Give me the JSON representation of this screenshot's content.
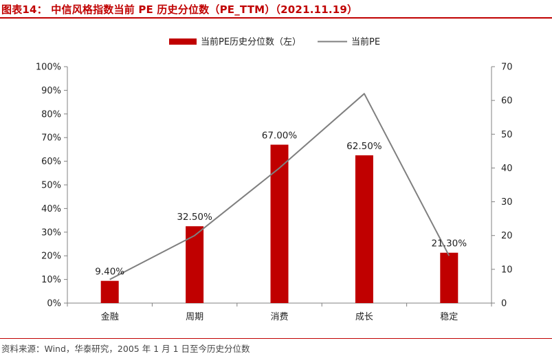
{
  "title": "图表14： 中信风格指数当前 PE 历史分位数（PE_TTM）（2021.11.19）",
  "source": "资料来源：Wind，华泰研究，2005 年 1 月 1 日至今历史分位数",
  "colors": {
    "bar": "#c00000",
    "line": "#7f7f7f",
    "title": "#c00000",
    "axis": "#808080"
  },
  "chart_data": {
    "type": "bar",
    "categories": [
      "金融",
      "周期",
      "消费",
      "成长",
      "稳定"
    ],
    "series": [
      {
        "name": "当前PE历史分位数（左）",
        "type": "bar",
        "axis": "left",
        "values": [
          0.094,
          0.325,
          0.67,
          0.625,
          0.213
        ],
        "data_labels": [
          "9.40%",
          "32.50%",
          "67.00%",
          "62.50%",
          "21.30%"
        ]
      },
      {
        "name": "当前PE",
        "type": "line",
        "axis": "right",
        "values": [
          7,
          20,
          40,
          62,
          14
        ]
      }
    ],
    "y_left": {
      "min": 0,
      "max": 1,
      "ticks": [
        "0%",
        "10%",
        "20%",
        "30%",
        "40%",
        "50%",
        "60%",
        "70%",
        "80%",
        "90%",
        "100%"
      ]
    },
    "y_right": {
      "min": 0,
      "max": 70,
      "ticks": [
        "0",
        "10",
        "20",
        "30",
        "40",
        "50",
        "60",
        "70"
      ]
    },
    "legend_position": "top-center",
    "grid": false
  }
}
